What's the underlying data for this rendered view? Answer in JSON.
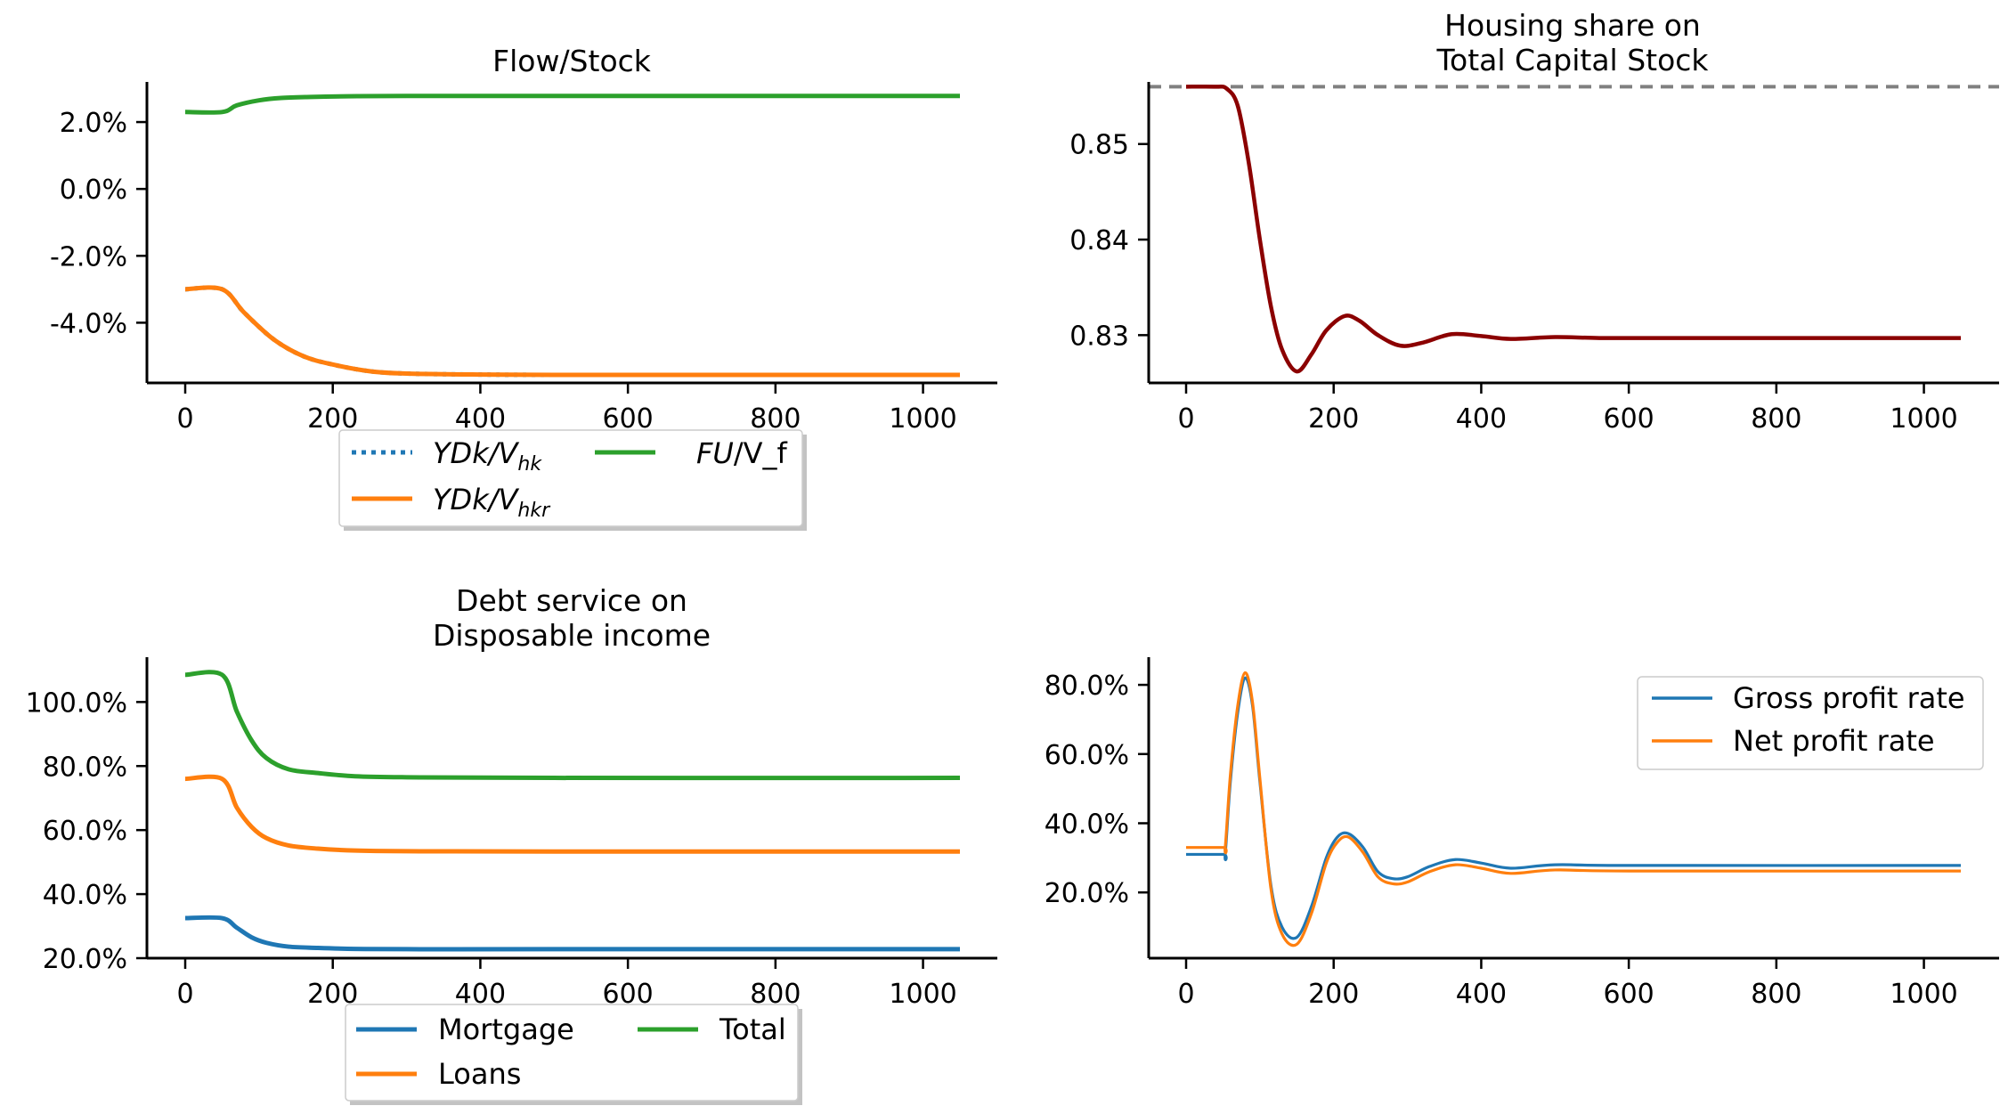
{
  "chart_data": [
    {
      "type": "line",
      "title": "Flow/Stock",
      "xlim": [
        0,
        1050
      ],
      "ylim": [
        -5.8,
        3.2
      ],
      "y_format": "percent",
      "xticks": [
        "0",
        "200",
        "400",
        "600",
        "800",
        "1000"
      ],
      "yticks": [
        {
          "value": 2.0,
          "label": "2.0%"
        },
        {
          "value": 0.0,
          "label": "0.0%"
        },
        {
          "value": -2.0,
          "label": "-2.0%"
        },
        {
          "value": -4.0,
          "label": "-4.0%"
        }
      ],
      "legend_position": "below",
      "series": [
        {
          "key": "ydk_vhk",
          "name_main": "YDk/V",
          "name_sub": "hk",
          "color": "#1f77b4",
          "style": "dotted",
          "x": [
            0,
            50,
            80,
            120,
            160,
            200,
            250,
            300,
            400,
            500,
            700,
            1050
          ],
          "y": [
            -3.0,
            -3.0,
            -3.7,
            -4.5,
            -5.0,
            -5.25,
            -5.45,
            -5.52,
            -5.55,
            -5.56,
            -5.56,
            -5.56
          ]
        },
        {
          "key": "ydk_vhkr",
          "name_main": "YDk/V",
          "name_sub": "hkr",
          "color": "#ff7f0e",
          "style": "solid",
          "x": [
            0,
            50,
            80,
            120,
            160,
            200,
            250,
            300,
            400,
            500,
            700,
            1050
          ],
          "y": [
            -3.0,
            -3.0,
            -3.7,
            -4.5,
            -5.0,
            -5.25,
            -5.45,
            -5.52,
            -5.55,
            -5.56,
            -5.56,
            -5.56
          ]
        },
        {
          "key": "fu_vf",
          "name_main": "FU",
          "name_rest": "/V_f",
          "color": "#2ca02c",
          "style": "solid",
          "x": [
            0,
            50,
            70,
            100,
            130,
            170,
            220,
            300,
            500,
            1050
          ],
          "y": [
            2.3,
            2.3,
            2.5,
            2.65,
            2.72,
            2.75,
            2.77,
            2.78,
            2.78,
            2.78
          ]
        }
      ]
    },
    {
      "type": "line",
      "title": "Housing share on\nTotal Capital Stock",
      "xlim": [
        0,
        1050
      ],
      "ylim": [
        0.825,
        0.8565
      ],
      "y_format": "number",
      "xticks": [
        "0",
        "200",
        "400",
        "600",
        "800",
        "1000"
      ],
      "yticks": [
        {
          "value": 0.85,
          "label": "0.85"
        },
        {
          "value": 0.84,
          "label": "0.84"
        },
        {
          "value": 0.83,
          "label": "0.83"
        }
      ],
      "reference_line": {
        "y": 0.856,
        "color": "#808080",
        "style": "dashed"
      },
      "series": [
        {
          "key": "housing_share",
          "color": "#8b0000",
          "style": "solid",
          "x": [
            0,
            40,
            55,
            70,
            85,
            100,
            115,
            130,
            150,
            170,
            190,
            215,
            235,
            260,
            290,
            320,
            360,
            400,
            440,
            500,
            560,
            650,
            1050
          ],
          "y": [
            0.856,
            0.856,
            0.8558,
            0.854,
            0.848,
            0.84,
            0.833,
            0.8285,
            0.8262,
            0.828,
            0.8305,
            0.832,
            0.8315,
            0.83,
            0.8289,
            0.8292,
            0.8301,
            0.8299,
            0.8296,
            0.8298,
            0.8297,
            0.8297,
            0.8297
          ]
        }
      ]
    },
    {
      "type": "line",
      "title": "Debt service on\nDisposable income",
      "xlim": [
        0,
        1050
      ],
      "ylim": [
        20,
        114
      ],
      "y_format": "percent",
      "xticks": [
        "0",
        "200",
        "400",
        "600",
        "800",
        "1000"
      ],
      "yticks": [
        {
          "value": 100,
          "label": "100.0%"
        },
        {
          "value": 80,
          "label": "80.0%"
        },
        {
          "value": 60,
          "label": "60.0%"
        },
        {
          "value": 40,
          "label": "40.0%"
        },
        {
          "value": 20,
          "label": "20.0%"
        }
      ],
      "legend_position": "below",
      "series": [
        {
          "key": "mortgage",
          "name": "Mortgage",
          "color": "#1f77b4",
          "style": "solid",
          "x": [
            0,
            50,
            70,
            90,
            110,
            140,
            180,
            230,
            300,
            500,
            1050
          ],
          "y": [
            32.5,
            32.5,
            29.5,
            26.5,
            24.8,
            23.6,
            23.2,
            22.9,
            22.8,
            22.8,
            22.8
          ]
        },
        {
          "key": "loans",
          "name": "Loans",
          "color": "#ff7f0e",
          "style": "solid",
          "x": [
            0,
            50,
            70,
            90,
            110,
            140,
            180,
            230,
            300,
            500,
            1050
          ],
          "y": [
            76,
            76,
            67,
            61,
            57.5,
            55.2,
            54.2,
            53.6,
            53.4,
            53.3,
            53.3
          ]
        },
        {
          "key": "total",
          "name": "Total",
          "color": "#2ca02c",
          "style": "solid",
          "x": [
            0,
            50,
            70,
            90,
            110,
            140,
            180,
            230,
            300,
            500,
            1050
          ],
          "y": [
            108.5,
            108.5,
            97,
            88,
            82.5,
            79,
            77.8,
            76.8,
            76.5,
            76.3,
            76.3
          ]
        }
      ]
    },
    {
      "type": "line",
      "title": "",
      "xlim": [
        0,
        1050
      ],
      "ylim": [
        1,
        88
      ],
      "y_format": "percent",
      "xticks": [
        "0",
        "200",
        "400",
        "600",
        "800",
        "1000"
      ],
      "yticks": [
        {
          "value": 80,
          "label": "80.0%"
        },
        {
          "value": 60,
          "label": "60.0%"
        },
        {
          "value": 40,
          "label": "40.0%"
        },
        {
          "value": 20,
          "label": "20.0%"
        }
      ],
      "legend_position": "top-right",
      "series": [
        {
          "key": "gross",
          "name": "Gross profit rate",
          "color": "#1f77b4",
          "style": "solid",
          "x": [
            0,
            50,
            53,
            60,
            70,
            80,
            90,
            100,
            115,
            130,
            150,
            170,
            190,
            205,
            220,
            240,
            260,
            280,
            300,
            330,
            365,
            400,
            440,
            500,
            600,
            1050
          ],
          "y": [
            31,
            31,
            31,
            52,
            72,
            82,
            74,
            52,
            22,
            10,
            7,
            16,
            30,
            36,
            37,
            33,
            26,
            24,
            24.5,
            27.5,
            29.5,
            28.5,
            27,
            28,
            27.8,
            27.8
          ]
        },
        {
          "key": "net",
          "name": "Net profit rate",
          "color": "#ff7f0e",
          "style": "solid",
          "x": [
            0,
            50,
            53,
            60,
            70,
            80,
            90,
            100,
            115,
            130,
            150,
            170,
            190,
            205,
            220,
            240,
            260,
            280,
            300,
            330,
            365,
            400,
            440,
            500,
            600,
            1050
          ],
          "y": [
            33,
            33,
            33,
            54,
            74,
            83.5,
            75,
            53,
            21,
            8,
            5,
            14,
            28.5,
            34.5,
            36,
            31.5,
            24.5,
            22.5,
            23,
            26,
            28,
            27,
            25.5,
            26.5,
            26.2,
            26.2
          ]
        }
      ]
    }
  ]
}
